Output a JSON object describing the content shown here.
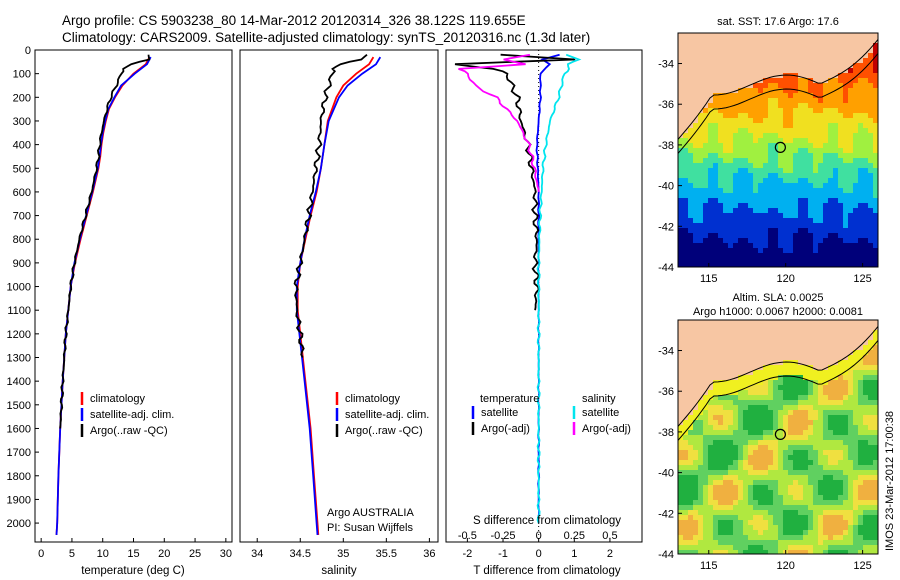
{
  "header": {
    "line1": "Argo profile: CS 5903238_80 14-Mar-2012 20120314_326 38.122S 119.655E",
    "line2": "Climatology: CARS2009. Satellite-adjusted climatology: synTS_20120316.nc (1.3d later)"
  },
  "colors": {
    "climatology": "#ff0000",
    "satellite": "#0000ff",
    "argo": "#000000",
    "sal_satellite": "#00e5ee",
    "sal_argo": "#ff00ff",
    "land": "#f7c6a3"
  },
  "chart_data": [
    {
      "type": "line",
      "name": "temperature-profile",
      "xlabel": "temperature (deg C)",
      "ylabel": "",
      "xlim": [
        -1,
        31
      ],
      "ylim": [
        2080,
        0
      ],
      "x_ticks": [
        0,
        5,
        10,
        15,
        20,
        25,
        30
      ],
      "y_ticks": [
        0,
        100,
        200,
        300,
        400,
        500,
        600,
        700,
        800,
        900,
        1000,
        1100,
        1200,
        1300,
        1400,
        1500,
        1600,
        1700,
        1800,
        1900,
        2000
      ],
      "legend": [
        "climatology",
        "satellite-adj. clim.",
        "Argo(..raw -QC)"
      ],
      "series": [
        {
          "name": "climatology",
          "pressure": [
            30,
            60,
            100,
            150,
            200,
            250,
            300,
            350,
            400,
            450,
            500,
            600,
            700,
            800,
            900,
            1000,
            1200,
            1400,
            1600,
            1800,
            2000,
            2050
          ],
          "values": [
            17.6,
            17.0,
            15.0,
            13.2,
            12.0,
            11.0,
            10.5,
            10.1,
            9.8,
            9.6,
            9.3,
            8.4,
            7.4,
            6.4,
            5.5,
            4.8,
            4.0,
            3.5,
            3.1,
            2.8,
            2.6,
            2.5
          ]
        },
        {
          "name": "satellite-adj. clim.",
          "pressure": [
            30,
            60,
            100,
            150,
            200,
            250,
            300,
            350,
            400,
            450,
            500,
            600,
            700,
            800,
            900,
            1000,
            1200,
            1400,
            1600,
            1800,
            2000,
            2050
          ],
          "values": [
            17.8,
            17.2,
            15.2,
            13.0,
            11.9,
            10.9,
            10.4,
            10.0,
            9.7,
            9.5,
            9.2,
            8.3,
            7.3,
            6.3,
            5.4,
            4.8,
            4.0,
            3.5,
            3.1,
            2.8,
            2.6,
            2.5
          ]
        },
        {
          "name": "Argo(..raw -QC)",
          "pressure": [
            20,
            40,
            60,
            80,
            100,
            150,
            200,
            250,
            300,
            350,
            400,
            450,
            500,
            600,
            700,
            800,
            900,
            1000,
            1100,
            1200,
            1400,
            1600
          ],
          "values": [
            17.6,
            17.5,
            14.5,
            13.5,
            13.0,
            12.2,
            11.3,
            10.7,
            10.2,
            9.8,
            9.5,
            9.3,
            9.0,
            8.2,
            7.2,
            6.2,
            5.4,
            4.8,
            4.4,
            4.0,
            3.5,
            3.1
          ]
        }
      ]
    },
    {
      "type": "line",
      "name": "salinity-profile",
      "xlabel": "salinity",
      "xlim": [
        33.8,
        36.1
      ],
      "ylim": [
        2080,
        0
      ],
      "x_ticks": [
        34,
        34.5,
        35,
        35.5,
        36
      ],
      "legend": [
        "climatology",
        "satellite-adj. clim.",
        "Argo(..raw -QC)"
      ],
      "annotation": [
        "Argo AUSTRALIA",
        "PI: Susan Wijffels"
      ],
      "series": [
        {
          "name": "climatology",
          "pressure": [
            30,
            60,
            100,
            150,
            200,
            300,
            400,
            500,
            600,
            700,
            800,
            900,
            1000,
            1100,
            1200,
            1400,
            1600,
            1800,
            2000,
            2050
          ],
          "values": [
            35.35,
            35.3,
            35.15,
            35.0,
            34.92,
            34.82,
            34.78,
            34.74,
            34.69,
            34.62,
            34.56,
            34.5,
            34.47,
            34.47,
            34.5,
            34.56,
            34.62,
            34.66,
            34.7,
            34.71
          ]
        },
        {
          "name": "satellite-adj. clim.",
          "pressure": [
            30,
            60,
            100,
            150,
            200,
            300,
            400,
            500,
            600,
            700,
            800,
            900,
            1000,
            1100,
            1200,
            1400,
            1600,
            1800,
            2000,
            2050
          ],
          "values": [
            35.43,
            35.38,
            35.22,
            35.05,
            34.95,
            34.83,
            34.78,
            34.74,
            34.68,
            34.61,
            34.55,
            34.5,
            34.46,
            34.46,
            34.49,
            34.55,
            34.61,
            34.65,
            34.69,
            34.7
          ]
        },
        {
          "name": "Argo(..raw -QC)",
          "pressure": [
            20,
            40,
            60,
            80,
            100,
            150,
            200,
            300,
            400,
            500,
            600,
            700,
            800,
            900,
            1000,
            1100,
            1200,
            1300
          ],
          "values": [
            35.3,
            35.2,
            34.95,
            34.9,
            34.87,
            34.83,
            34.79,
            34.74,
            34.72,
            34.68,
            34.64,
            34.6,
            34.55,
            34.5,
            34.45,
            34.46,
            34.5,
            34.53
          ]
        }
      ]
    },
    {
      "type": "line",
      "name": "difference-profile",
      "xlabel": "T difference from climatology",
      "top_axis_label": "S difference from climatology",
      "xlim": [
        -2.6,
        2.9
      ],
      "ylim": [
        2080,
        0
      ],
      "x_ticks": [
        -2,
        -1,
        0,
        1,
        2
      ],
      "s_ticks": [
        -0.5,
        -0.25,
        0,
        0.25,
        0.5
      ],
      "legend_titles": [
        "temperature",
        "salinity"
      ],
      "legend": [
        "satellite",
        "Argo(-adj)",
        "satellite",
        "Argo(-adj)"
      ],
      "series": [
        {
          "name": "T satellite",
          "pressure": [
            20,
            40,
            60,
            100,
            200,
            400,
            600,
            800,
            1000,
            1200,
            1500,
            2000
          ],
          "values": [
            0.6,
            0.1,
            0.3,
            0.05,
            0.05,
            -0.05,
            0.0,
            0.0,
            0.0,
            0.0,
            0.0,
            0.0
          ]
        },
        {
          "name": "T Argo(-adj)",
          "pressure": [
            20,
            40,
            60,
            80,
            100,
            200,
            300,
            400,
            500,
            600,
            700,
            800,
            900,
            1000,
            1100
          ],
          "values": [
            -1.0,
            1.0,
            -2.4,
            -1.2,
            -0.9,
            -0.6,
            -0.5,
            -0.3,
            -0.2,
            -0.1,
            -0.1,
            -0.05,
            -0.1,
            -0.05,
            -0.1
          ]
        },
        {
          "name": "S satellite",
          "pressure": [
            20,
            40,
            60,
            80,
            100,
            200,
            300,
            400,
            500,
            700,
            900,
            1200,
            1600,
            2000
          ],
          "values": [
            0.2,
            0.28,
            0.2,
            0.22,
            0.18,
            0.14,
            0.08,
            0.05,
            0.03,
            0.01,
            0.0,
            0.0,
            0.0,
            0.0
          ]
        },
        {
          "name": "S Argo(-adj)",
          "pressure": [
            20,
            40,
            60,
            80,
            100,
            150,
            200,
            300,
            400,
            500,
            600
          ],
          "values": [
            -0.05,
            -0.25,
            -0.1,
            -0.55,
            -0.5,
            -0.45,
            -0.3,
            -0.15,
            -0.07,
            -0.03,
            0.0
          ]
        }
      ]
    },
    {
      "type": "heatmap",
      "name": "sst-map",
      "title": "sat. SST: 17.6 Argo: 17.6",
      "x_ticks": [
        115,
        120,
        125
      ],
      "y_ticks": [
        -34,
        -36,
        -38,
        -40,
        -42,
        -44
      ],
      "xlim": [
        113,
        126
      ],
      "ylim": [
        -44,
        -32.5
      ],
      "marker": [
        119.655,
        -38.122
      ]
    },
    {
      "type": "heatmap",
      "name": "sla-map",
      "title": "Altim. SLA: 0.0025",
      "subtitle": "Argo h1000: 0.0067 h2000: 0.0081",
      "x_ticks": [
        115,
        120,
        125
      ],
      "y_ticks": [
        -34,
        -36,
        -38,
        -40,
        -42,
        -44
      ],
      "xlim": [
        113,
        126
      ],
      "ylim": [
        -44,
        -32.5
      ],
      "marker": [
        119.655,
        -38.122
      ]
    }
  ],
  "footer": {
    "stamp": "IMOS 23-Mar-2012 17:00:38"
  }
}
